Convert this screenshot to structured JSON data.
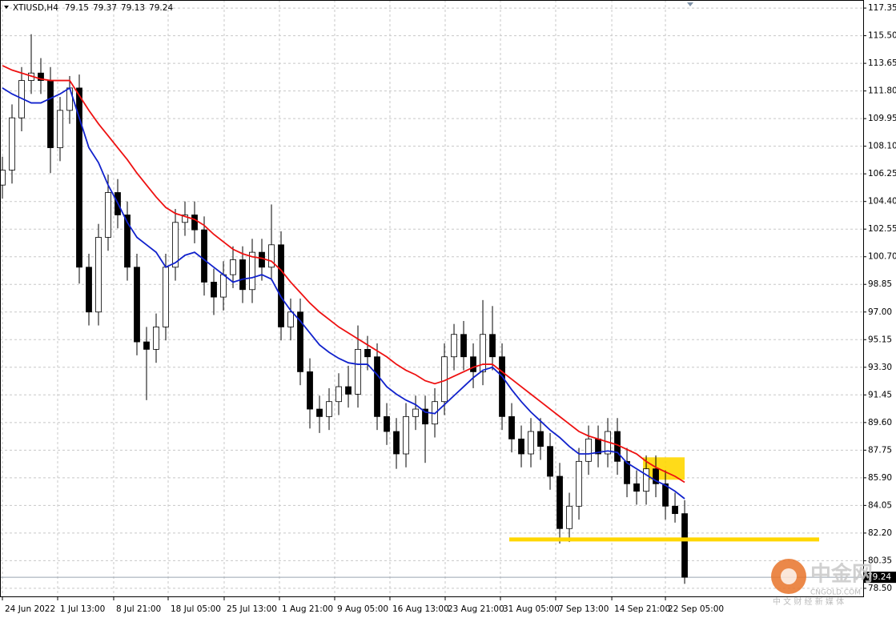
{
  "chart_data": {
    "type": "candlestick",
    "title": "XTIUSD,H4",
    "header_values": [
      79.15,
      79.37,
      79.13,
      79.24
    ],
    "candles": {
      "open": [
        105.5,
        106.5,
        110,
        112.5,
        113,
        112.5,
        108,
        110.5,
        112,
        100,
        97,
        102,
        105,
        103.5,
        100,
        95,
        94.5,
        96,
        100,
        103,
        103.5,
        102.5,
        99,
        98,
        99.5,
        100.5,
        98.5,
        101,
        100,
        101.5,
        96,
        97,
        93,
        90.5,
        90,
        91,
        92,
        91.5,
        94.5,
        94,
        90,
        89,
        87.5,
        90,
        90.5,
        89.5,
        91,
        94,
        95.5,
        94,
        93,
        95.5,
        94,
        90,
        88.5,
        87.5,
        89,
        88,
        86,
        82.5,
        84,
        87,
        88.5,
        87.5,
        89,
        87,
        85.5,
        85,
        86.5,
        85.5,
        84,
        83.5
      ],
      "high": [
        107.4,
        110.9,
        113.4,
        115.6,
        114,
        113.4,
        111.4,
        112.8,
        112.9,
        100.9,
        102.9,
        106.2,
        105.9,
        104.4,
        100.9,
        96,
        96.9,
        100.9,
        103.9,
        104.4,
        104.4,
        103.4,
        99.9,
        100.4,
        101.4,
        101.4,
        101.9,
        101.9,
        104.2,
        102.4,
        97.9,
        97.9,
        93.9,
        91.4,
        91.9,
        92.9,
        93.4,
        96.1,
        95.4,
        94.9,
        90.9,
        89.9,
        90.9,
        91.4,
        91.4,
        91.9,
        94.9,
        96.2,
        96.4,
        94.9,
        97.8,
        97.4,
        94.9,
        90.9,
        89.4,
        89.9,
        89.9,
        88.9,
        86.9,
        84.9,
        87.9,
        89.4,
        89.4,
        89.9,
        89.9,
        87.9,
        86.4,
        87.4,
        87.4,
        86.4,
        84.9,
        84.4
      ],
      "low": [
        104.6,
        105.6,
        109.1,
        111.6,
        111.6,
        106.3,
        107.1,
        109.6,
        98.9,
        96.1,
        96.1,
        101.1,
        102.6,
        99.1,
        94.1,
        91.1,
        93.6,
        95.1,
        99.1,
        102.1,
        101.6,
        98.1,
        96.8,
        97.1,
        98.6,
        97.6,
        97.6,
        99.1,
        99.1,
        95.1,
        95.1,
        92.1,
        89.2,
        88.9,
        89.1,
        90.1,
        90.6,
        90.6,
        93.1,
        89.1,
        88.1,
        86.5,
        86.6,
        89.1,
        86.9,
        88.6,
        90.1,
        93.1,
        93.1,
        91.9,
        92.1,
        93.1,
        89.1,
        87.6,
        86.6,
        86.6,
        87.1,
        85.1,
        81.5,
        81.6,
        83.1,
        86.1,
        86.6,
        86.6,
        86.1,
        84.6,
        84.1,
        84.1,
        84.6,
        83.1,
        82.9,
        78.8
      ],
      "close": [
        106.5,
        110,
        112.5,
        113,
        112.5,
        108,
        110.5,
        112,
        100,
        97,
        102,
        105,
        103.5,
        100,
        95,
        94.5,
        96,
        100,
        103,
        103.5,
        102.5,
        99,
        98,
        99.5,
        100.5,
        98.5,
        101,
        100,
        101.5,
        96,
        97,
        93,
        90.5,
        90,
        91,
        92,
        91.5,
        94.5,
        94,
        90,
        89,
        87.5,
        90,
        90.5,
        89.5,
        91,
        94,
        95.5,
        94,
        93,
        95.5,
        94,
        90,
        88.5,
        87.5,
        89,
        88,
        86,
        82.5,
        84,
        87,
        88.5,
        87.5,
        89,
        87,
        85.5,
        85,
        86.5,
        85.5,
        84,
        83.5,
        79.24
      ]
    },
    "lines": [
      {
        "color": "#ee1111",
        "values": [
          113.5,
          113.2,
          113,
          112.8,
          112.6,
          112.5,
          112.5,
          112.5,
          111.5,
          110.5,
          109.6,
          108.8,
          108,
          107.2,
          106.3,
          105.5,
          104.7,
          104,
          103.6,
          103.4,
          103.2,
          102.8,
          102.2,
          101.7,
          101.2,
          100.9,
          100.7,
          100.6,
          100.4,
          99.8,
          99,
          98.3,
          97.6,
          97,
          96.5,
          96,
          95.6,
          95.2,
          94.8,
          94.4,
          94,
          93.5,
          93.1,
          92.8,
          92.4,
          92.2,
          92.4,
          92.7,
          93,
          93.3,
          93.5,
          93.5,
          93,
          92.5,
          92,
          91.5,
          91,
          90.5,
          90,
          89.5,
          89,
          88.7,
          88.5,
          88.3,
          88.1,
          87.8,
          87.5,
          87,
          86.6,
          86.3,
          86,
          85.6
        ]
      },
      {
        "color": "#1122cc",
        "values": [
          112,
          111.6,
          111.3,
          111,
          111,
          111.3,
          111.6,
          112,
          110,
          108,
          107,
          105.5,
          104.3,
          103,
          102,
          101.5,
          101,
          100,
          100.3,
          100.8,
          101,
          100.5,
          100,
          99.5,
          99,
          99.2,
          99.3,
          99.5,
          99.2,
          98,
          97.1,
          96.4,
          95.6,
          94.8,
          94.3,
          93.9,
          93.6,
          93.5,
          93.5,
          92.8,
          92,
          91.5,
          91.1,
          90.8,
          90.3,
          90.2,
          90.8,
          91.4,
          92,
          92.6,
          93.1,
          93.3,
          92.7,
          91.8,
          91,
          90.3,
          89.7,
          89.1,
          88.6,
          88,
          87.5,
          87.5,
          87.6,
          87.7,
          87.6,
          86.9,
          86.5,
          86.1,
          85.7,
          85.4,
          85,
          84.5
        ]
      }
    ],
    "xlim": [
      -0.25,
      89.58
    ],
    "xticks": [
      {
        "value": 0,
        "label": "24 Jun 2022"
      },
      {
        "value": 5.75,
        "label": "1 Jul 13:00"
      },
      {
        "value": 11.58,
        "label": "8 Jul 21:00"
      },
      {
        "value": 17.25,
        "label": "18 Jul 05:00"
      },
      {
        "value": 23.08,
        "label": "25 Jul 13:00"
      },
      {
        "value": 28.83,
        "label": "1 Aug 21:00"
      },
      {
        "value": 34.58,
        "label": "9 Aug 05:00"
      },
      {
        "value": 40.33,
        "label": "16 Aug 13:00"
      },
      {
        "value": 46.08,
        "label": "23 Aug 21:00"
      },
      {
        "value": 51.83,
        "label": "31 Aug 05:00"
      },
      {
        "value": 57.58,
        "label": "7 Sep 13:00"
      },
      {
        "value": 63.42,
        "label": "14 Sep 21:00"
      },
      {
        "value": 69,
        "label": "22 Sep 05:00"
      }
    ],
    "ylim": [
      77.96,
      117.89
    ],
    "yticks": [
      117.35,
      {
        "value": 115.5,
        "label": "115.50"
      },
      113.65,
      {
        "value": 111.8,
        "label": "111.80"
      },
      109.95,
      {
        "value": 108.1,
        "label": "108.10"
      },
      106.25,
      {
        "value": 104.4,
        "label": "104.40"
      },
      102.55,
      {
        "value": 100.7,
        "label": "100.70"
      },
      98.85,
      {
        "value": 97,
        "label": "97.00"
      },
      95.15,
      {
        "value": 93.3,
        "label": "93.30"
      },
      91.45,
      {
        "value": 89.6,
        "label": "89.60"
      },
      87.75,
      {
        "value": 85.9,
        "label": "85.90"
      },
      84.05,
      {
        "value": 82.2,
        "label": "82.20"
      },
      80.35,
      {
        "value": 78.5,
        "label": "78.50"
      }
    ],
    "grid": true,
    "annotations": [
      {
        "type": "hline",
        "value": 81.77,
        "xrange": [
          52.75,
          85
        ],
        "color": "#ffd700"
      },
      {
        "type": "box",
        "yrange": [
          85.77,
          87.27
        ],
        "xrange": [
          66.67,
          71
        ],
        "color": "#ffd700"
      }
    ],
    "watermark": {
      "logo": "中金网",
      "site": "CNGOLD.COM",
      "slogan": "中 文 财 经 新 媒 体"
    }
  }
}
